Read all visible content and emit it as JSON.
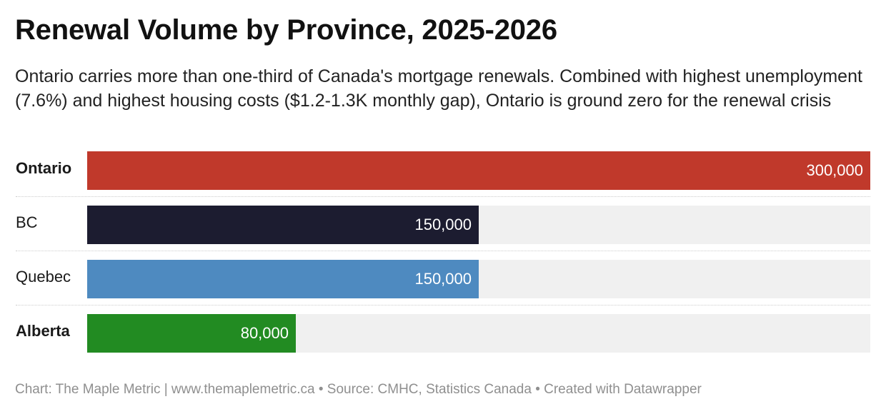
{
  "header": {
    "title": "Renewal Volume by Province, 2025-2026",
    "subtitle": "Ontario carries more than one-third of Canada's mortgage renewals. Combined with highest unemployment (7.6%) and highest housing costs ($1.2-1.3K monthly gap), Ontario is ground zero for the renewal crisis"
  },
  "footer": {
    "credit": "Chart: The Maple Metric | www.themaplemetric.ca • Source: CMHC, Statistics Canada • Created with Datawrapper"
  },
  "chart_data": {
    "type": "bar",
    "orientation": "horizontal",
    "title": "Renewal Volume by Province, 2025-2026",
    "xlabel": "",
    "ylabel": "",
    "xlim": [
      0,
      300000
    ],
    "grid": false,
    "categories": [
      "Ontario",
      "BC",
      "Quebec",
      "Alberta"
    ],
    "values": [
      300000,
      150000,
      150000,
      80000
    ],
    "value_labels": [
      "300,000",
      "150,000",
      "150,000",
      "80,000"
    ],
    "bold_labels": [
      true,
      false,
      false,
      true
    ],
    "colors": [
      "#c0392b",
      "#1c1c30",
      "#4e8ac0",
      "#228b22"
    ]
  },
  "colors": {
    "track": "#f0f0f0",
    "footer_text": "#8f8f8f"
  }
}
